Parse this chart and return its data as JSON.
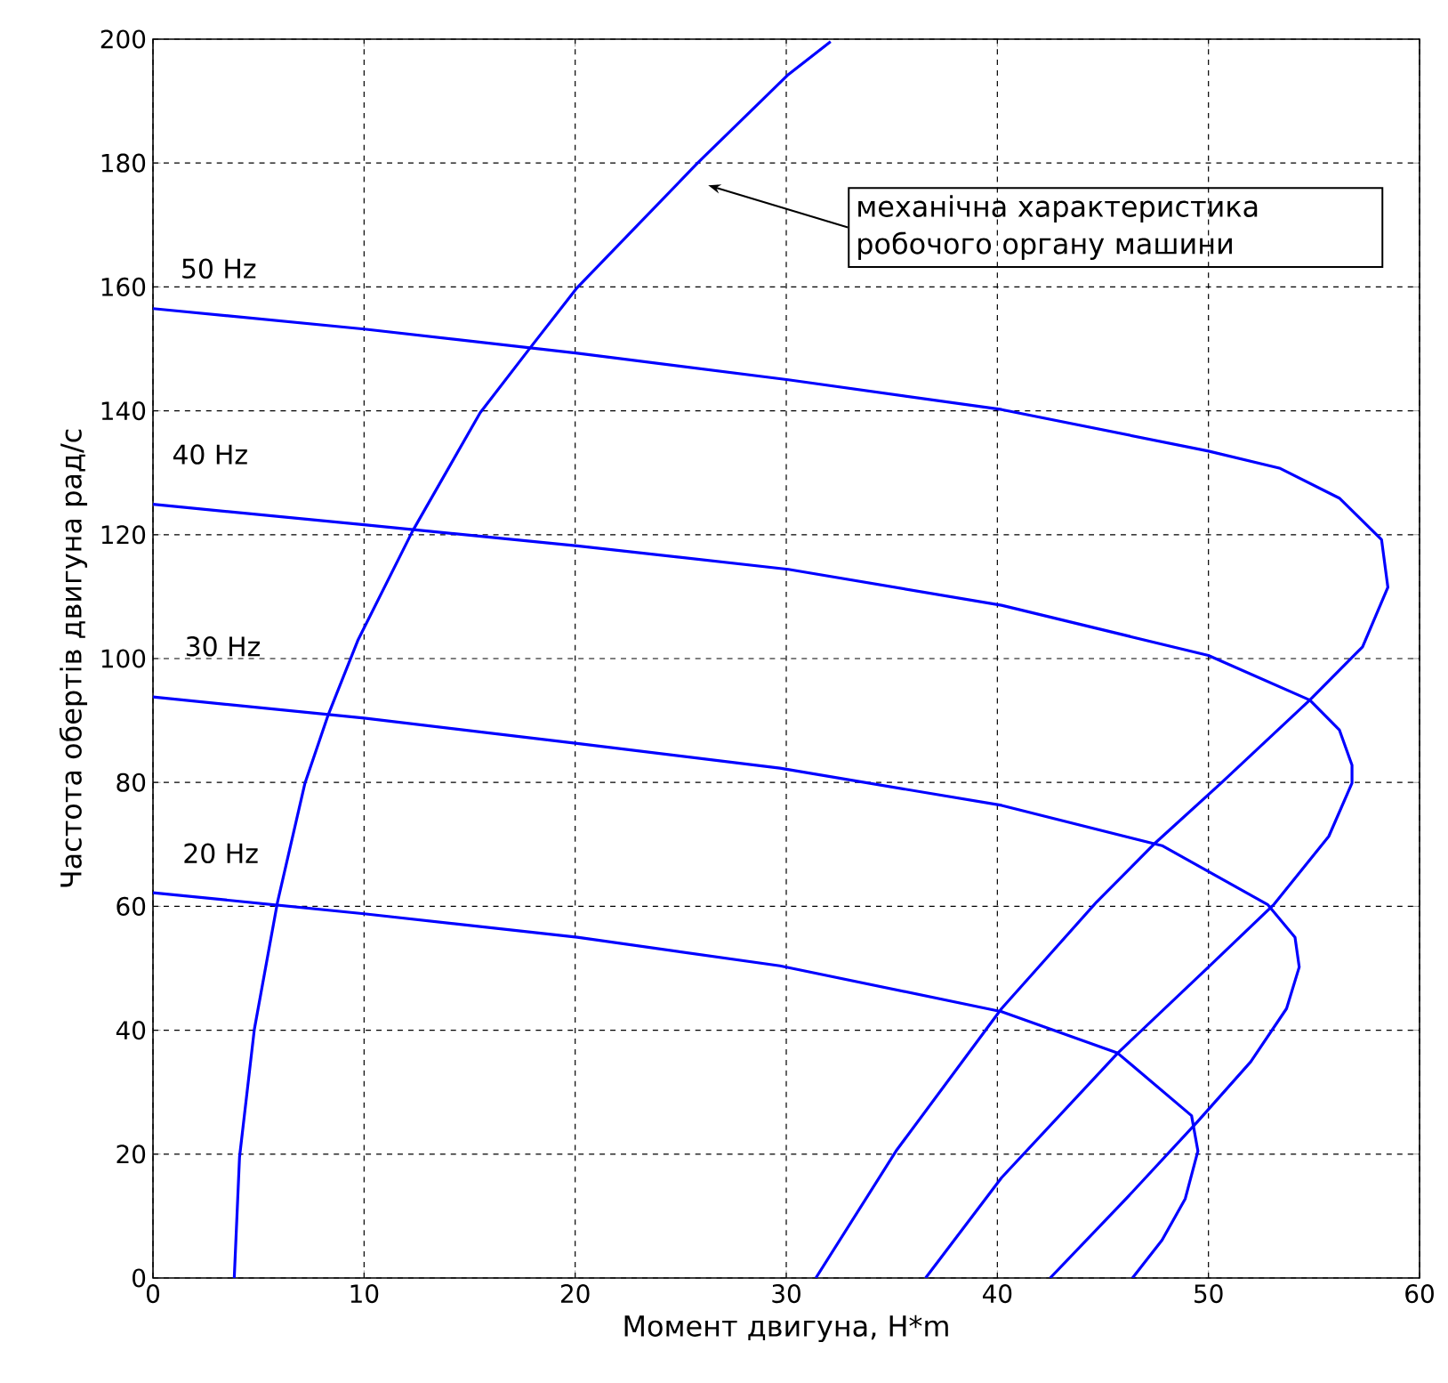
{
  "chart_data": {
    "type": "line",
    "xlabel": "Момент двигуна, Н*m",
    "ylabel": "Частота обертів двигуна  рад/с",
    "xlim": [
      0,
      60
    ],
    "ylim": [
      0,
      200
    ],
    "xticks": [
      0,
      10,
      20,
      30,
      40,
      50,
      60
    ],
    "yticks": [
      0,
      20,
      40,
      60,
      80,
      100,
      120,
      140,
      160,
      180,
      200
    ],
    "grid": true,
    "marker": "none",
    "line_style": "solid",
    "series": [
      {
        "color": "#0000ff",
        "x": [
          3.85,
          4.1,
          4.8,
          5.9,
          7.2,
          8.3,
          9.7,
          12.3,
          15.5,
          17.9,
          20.1,
          25.8,
          30.1,
          32.1
        ],
        "values": [
          0,
          19.5,
          40.1,
          60.7,
          79.9,
          90.9,
          102.9,
          120.6,
          139.7,
          150.3,
          159.9,
          180,
          194.3,
          199.6
        ]
      },
      {
        "color": "#0000ff",
        "x": [
          0,
          10,
          20.1,
          30.1,
          40.2,
          50,
          53.4,
          56.2,
          58.2,
          58.5,
          57.3,
          54.8,
          50.6,
          47.5,
          44.7,
          40.2,
          35.2,
          31.4
        ],
        "values": [
          156.5,
          153.2,
          149.3,
          145,
          140.2,
          133.5,
          130.7,
          125.9,
          119.2,
          111.5,
          101.9,
          93.3,
          79.9,
          70.3,
          60.7,
          43.5,
          20.5,
          0
        ]
      },
      {
        "color": "#0000ff",
        "x": [
          0,
          10,
          20.1,
          30.1,
          40.2,
          50,
          54.8,
          56.2,
          56.8,
          56.8,
          55.7,
          53.1,
          50,
          45.7,
          40.2,
          36.6
        ],
        "values": [
          124.9,
          121.6,
          118.2,
          114.4,
          108.6,
          100.5,
          93.3,
          88.5,
          82.8,
          79.9,
          71.3,
          60.3,
          50.2,
          36.3,
          16.2,
          0
        ]
      },
      {
        "color": "#0000ff",
        "x": [
          0,
          10,
          20.1,
          29.7,
          40.2,
          47.8,
          52.8,
          54.1,
          54.3,
          53.7,
          52,
          49.5,
          46.1,
          42.5
        ],
        "values": [
          93.8,
          90.4,
          86.3,
          82.3,
          76.3,
          69.8,
          60.3,
          55,
          50.2,
          43.5,
          34.9,
          25.3,
          12.8,
          0
        ]
      },
      {
        "color": "#0000ff",
        "x": [
          0,
          10,
          20.1,
          29.7,
          40.2,
          45.7,
          49.2,
          49.5,
          48.9,
          47.8,
          46.4
        ],
        "values": [
          62.2,
          58.8,
          55,
          50.4,
          43,
          36.3,
          26.2,
          20.5,
          12.8,
          6.1,
          0
        ]
      }
    ],
    "annotations": [
      "механічна характеристика робочого органу машини",
      "50 Hz",
      "40 Hz",
      "30 Hz",
      "20 Hz"
    ]
  }
}
